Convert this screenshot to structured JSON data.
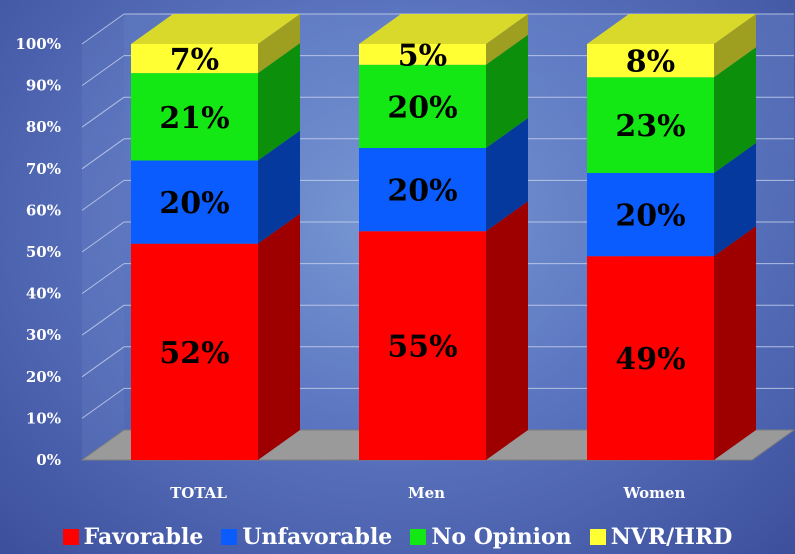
{
  "chart_data": {
    "type": "bar",
    "stacked": true,
    "three_d": true,
    "categories": [
      "TOTAL",
      "Men",
      "Women"
    ],
    "series": [
      {
        "name": "Favorable",
        "color": "#ff0000",
        "values": [
          52,
          55,
          49
        ]
      },
      {
        "name": "Unfavorable",
        "color": "#0a5cff",
        "values": [
          20,
          20,
          20
        ]
      },
      {
        "name": "No Opinion",
        "color": "#14e814",
        "values": [
          21,
          20,
          23
        ]
      },
      {
        "name": "NVR/HRD",
        "color": "#ffff33",
        "values": [
          7,
          5,
          8
        ]
      }
    ],
    "data_labels": [
      [
        "52%",
        "55%",
        "49%"
      ],
      [
        "20%",
        "20%",
        "20%"
      ],
      [
        "21%",
        "20%",
        "23%"
      ],
      [
        "7%",
        "5%",
        "8%"
      ]
    ],
    "y_ticks": [
      "0%",
      "10%",
      "20%",
      "30%",
      "40%",
      "50%",
      "60%",
      "70%",
      "80%",
      "90%",
      "100%"
    ],
    "ylim": [
      0,
      100
    ],
    "grid": true,
    "legend_position": "bottom",
    "title": "",
    "xlabel": "",
    "ylabel": ""
  }
}
